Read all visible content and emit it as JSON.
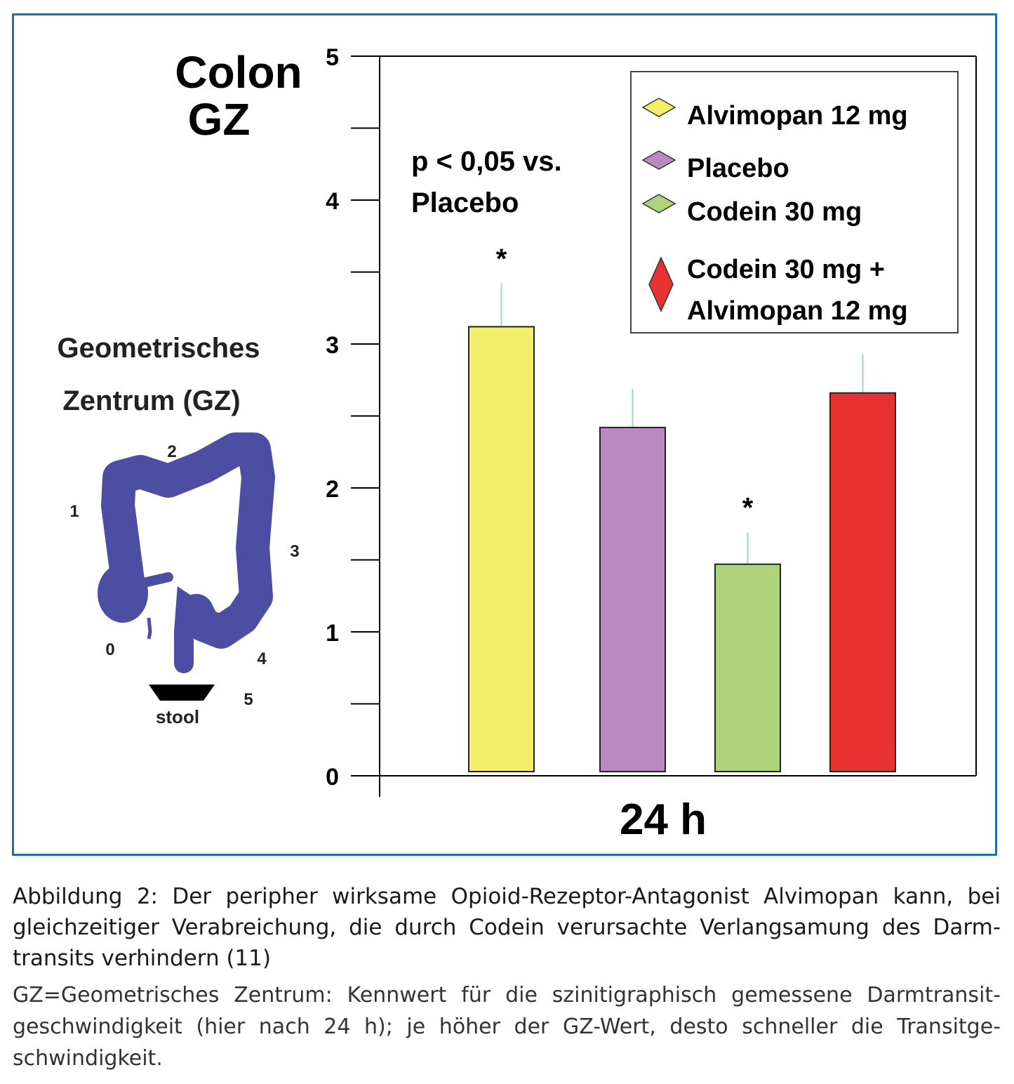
{
  "chart_data": {
    "type": "bar",
    "title": "Colon\nGZ",
    "title_lines": [
      "Colon",
      "GZ"
    ],
    "xlabel": "24 h",
    "ylabel": "",
    "ylim": [
      0,
      5
    ],
    "yticks": [
      "0",
      "1",
      "2",
      "3",
      "4",
      "5"
    ],
    "ytick_values": [
      0,
      1,
      2,
      3,
      4,
      5
    ],
    "minor_ticks": [
      0.5,
      1.5,
      2.5,
      3.5,
      4.5
    ],
    "grid": false,
    "legend_position": "top-right",
    "bars": [
      {
        "name": "Alvimopan 12 mg",
        "value": 3.12,
        "error": 0.3,
        "color": "#f3ef68",
        "significant": true
      },
      {
        "name": "Placebo",
        "value": 2.42,
        "error": 0.27,
        "color": "#b98abf",
        "significant": false
      },
      {
        "name": "Codein 30 mg",
        "value": 1.47,
        "error": 0.22,
        "color": "#add47b",
        "significant": true
      },
      {
        "name": "Codein 30 mg + Alvimopan 12 mg",
        "value": 2.66,
        "error": 0.27,
        "color": "#e83232",
        "significant": false
      }
    ],
    "legend": [
      {
        "lines": [
          "Alvimopan 12 mg"
        ],
        "color": "#f3ef68"
      },
      {
        "lines": [
          "Placebo"
        ],
        "color": "#b98abf"
      },
      {
        "lines": [
          "Codein 30 mg"
        ],
        "color": "#add47b"
      },
      {
        "lines": [
          "Codein 30 mg +",
          "Alvimopan 12 mg"
        ],
        "color": "#e83232"
      }
    ],
    "annotation": [
      "p < 0,05 vs.",
      "Placebo"
    ],
    "significance_marker": "*",
    "error_color": "#9fd8c8",
    "inset": {
      "title_lines": [
        "Geometrisches",
        "Zentrum (GZ)"
      ],
      "segment_labels": [
        "0",
        "1",
        "2",
        "3",
        "4",
        "5"
      ],
      "stool_label": "stool",
      "colon_color": "#4b4ea3"
    }
  },
  "caption": {
    "title": "Abbildung 2: Der peripher wirksame Opioid-Rezeptor-Antagonist Alvimopan kann, bei gleichzeitiger Verabreichung, die durch Codein verursachte Verlangsamung des Darm­transits verhindern (11)",
    "text": "GZ=Geometrisches Zentrum: Kennwert für die szinitigraphisch gemessene Darmtransit­geschwindigkeit (hier nach 24 h); je höher der GZ-Wert, desto schneller die Transitge­schwindigkeit."
  }
}
